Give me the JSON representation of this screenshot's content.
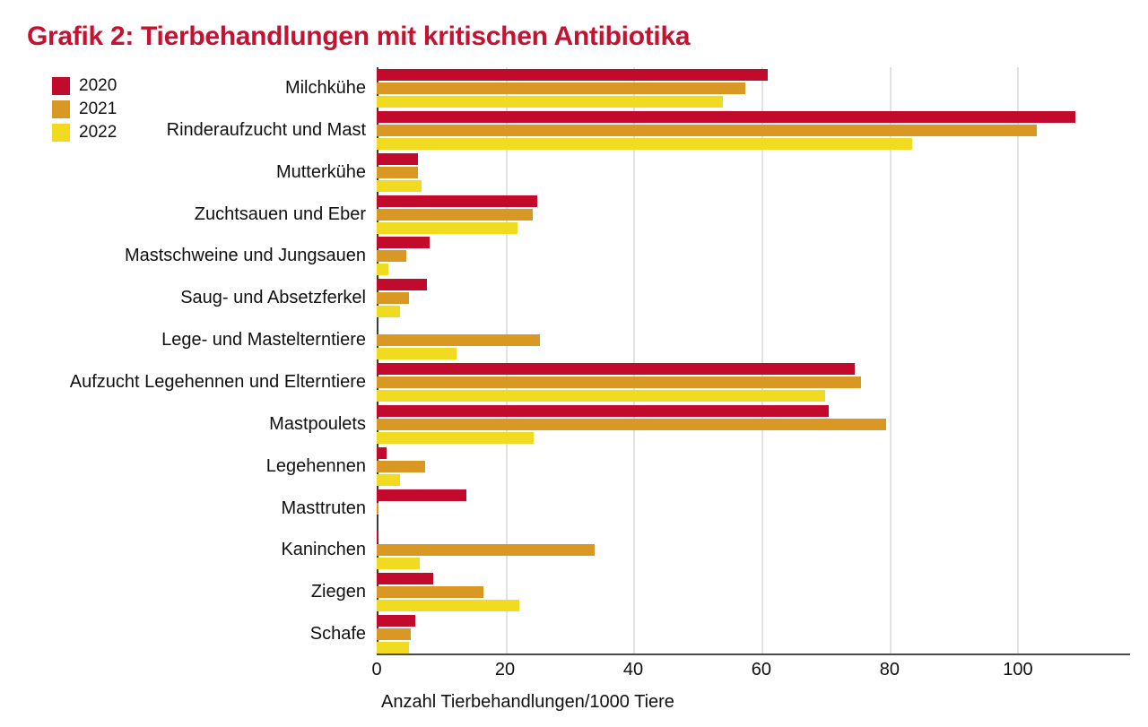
{
  "header": {
    "title": "Grafik 2: Tierbehandlungen mit kritischen Antibiotika",
    "title_color": "#c51230"
  },
  "chart_data": {
    "type": "bar",
    "orientation": "horizontal",
    "title": "Grafik 2: Tierbehandlungen mit kritischen Antibiotika",
    "xlabel": "Anzahl Tierbehandlungen/1000 Tiere",
    "ylabel": "",
    "xlim": [
      0,
      117.5
    ],
    "x_ticks": [
      0,
      20,
      40,
      60,
      80,
      100
    ],
    "grid": "vertical-gridlines-on",
    "legend_position": "top-left",
    "categories": [
      "Milchkühe",
      "Rinderaufzucht und Mast",
      "Mutterkühe",
      "Zuchtsauen und Eber",
      "Mastschweine und Jungsauen",
      "Saug- und Absetzferkel",
      "Lege- und Mastelterntiere",
      "Aufzucht Legehennen und Elterntiere",
      "Mastpoulets",
      "Legehennen",
      "Masttruten",
      "Kaninchen",
      "Ziegen",
      "Schafe"
    ],
    "series": [
      {
        "name": "2020",
        "color": "#c20b2c",
        "values": [
          61,
          109,
          6.4,
          25,
          8.3,
          7.8,
          0,
          74.5,
          70.5,
          1.5,
          14,
          0.3,
          8.8,
          6
        ]
      },
      {
        "name": "2021",
        "color": "#d99723",
        "values": [
          57.5,
          103,
          6.4,
          24.3,
          4.6,
          5,
          25.5,
          75.5,
          79.5,
          7.5,
          0.3,
          34,
          16.7,
          5.3
        ]
      },
      {
        "name": "2022",
        "color": "#f0db21",
        "values": [
          54,
          83.5,
          7,
          22,
          1.8,
          3.6,
          12.5,
          70,
          24.5,
          3.7,
          0,
          6.7,
          22.3,
          5
        ]
      }
    ],
    "axis_colors": {
      "axis_line": "#3d3d3d",
      "gridline": "#e2e2e2"
    }
  }
}
